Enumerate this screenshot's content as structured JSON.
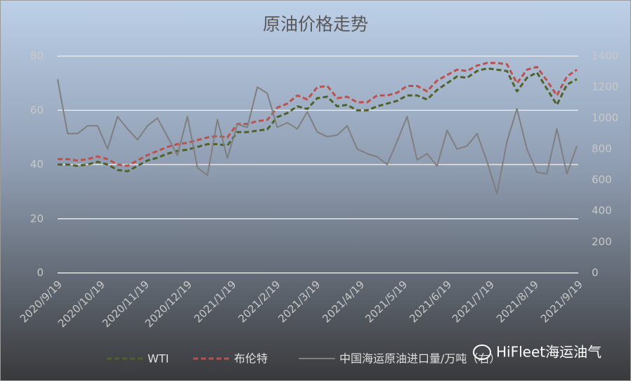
{
  "chart_data": {
    "type": "line",
    "title": "原油价格走势",
    "watermark": "HiFleet海运油气",
    "x": [
      "2020/9/19",
      "2020/9/26",
      "2020/10/3",
      "2020/10/10",
      "2020/10/17",
      "2020/10/24",
      "2020/10/31",
      "2020/11/7",
      "2020/11/14",
      "2020/11/21",
      "2020/11/28",
      "2020/12/5",
      "2020/12/12",
      "2020/12/19",
      "2020/12/26",
      "2021/1/2",
      "2021/1/9",
      "2021/1/16",
      "2021/1/23",
      "2021/1/30",
      "2021/2/6",
      "2021/2/13",
      "2021/2/20",
      "2021/2/27",
      "2021/3/6",
      "2021/3/13",
      "2021/3/20",
      "2021/3/27",
      "2021/4/3",
      "2021/4/10",
      "2021/4/17",
      "2021/4/24",
      "2021/5/1",
      "2021/5/8",
      "2021/5/15",
      "2021/5/22",
      "2021/5/29",
      "2021/6/5",
      "2021/6/12",
      "2021/6/19",
      "2021/6/26",
      "2021/7/3",
      "2021/7/10",
      "2021/7/17",
      "2021/7/24",
      "2021/7/31",
      "2021/8/7",
      "2021/8/14",
      "2021/8/21",
      "2021/8/28",
      "2021/9/4",
      "2021/9/11",
      "2021/9/18"
    ],
    "xlim": [
      "2020/9/19",
      "2021/9/19"
    ],
    "xticks": [
      "2020/9/19",
      "2020/10/19",
      "2020/11/19",
      "2020/12/19",
      "2021/1/19",
      "2021/2/19",
      "2021/3/19",
      "2021/4/19",
      "2021/5/19",
      "2021/6/19",
      "2021/7/19",
      "2021/8/19",
      "2021/9/19"
    ],
    "ylim": [
      0,
      80
    ],
    "yticks": [
      0,
      20,
      40,
      60,
      80
    ],
    "y2lim": [
      0,
      1400
    ],
    "y2ticks": [
      0,
      200,
      400,
      600,
      800,
      1000,
      1200,
      1400
    ],
    "grid": true,
    "series": [
      {
        "name": "WTI",
        "color": "#4f6228",
        "dash": true,
        "values": [
          40,
          40,
          39.5,
          40,
          41,
          40,
          38,
          37.5,
          39.5,
          41.5,
          42.5,
          44,
          45,
          45.5,
          46.5,
          47.5,
          47.5,
          47,
          52,
          52,
          52.5,
          53,
          57.5,
          59,
          61.5,
          60.5,
          64.5,
          65,
          61.5,
          62,
          60,
          60,
          61.5,
          62.5,
          63.5,
          65.5,
          65.5,
          64,
          67.5,
          70,
          72.5,
          72,
          74.5,
          75.5,
          75,
          74.5,
          67,
          72,
          74,
          68,
          62,
          69.5,
          71.5
        ]
      },
      {
        "name": "布伦特",
        "color": "#c0504d",
        "dash": true,
        "values": [
          42,
          42,
          41.5,
          42,
          43,
          42,
          40,
          39.5,
          41.5,
          43.5,
          45,
          46.5,
          47.5,
          48,
          49,
          50,
          50.5,
          50,
          55,
          55,
          56,
          56.5,
          61,
          62.5,
          65.5,
          64,
          68.5,
          69,
          64.5,
          65,
          63,
          63,
          65.5,
          65.5,
          66.5,
          69,
          69,
          67,
          71,
          73,
          75,
          74.5,
          76.5,
          77.5,
          77.5,
          77,
          70,
          75,
          76,
          71,
          65.5,
          72.5,
          75
        ]
      },
      {
        "name": "中国海运原油进口量/万吨（右）",
        "color": "#7f7f7f",
        "axis": "y2",
        "values": [
          1250,
          900,
          900,
          950,
          950,
          800,
          1010,
          930,
          860,
          950,
          1000,
          880,
          760,
          1010,
          680,
          630,
          990,
          740,
          960,
          940,
          1200,
          1160,
          940,
          970,
          930,
          1040,
          910,
          880,
          890,
          950,
          800,
          770,
          750,
          700,
          850,
          1010,
          730,
          770,
          690,
          920,
          800,
          820,
          900,
          720,
          510,
          850,
          1060,
          800,
          650,
          640,
          930,
          640,
          820
        ]
      }
    ]
  }
}
